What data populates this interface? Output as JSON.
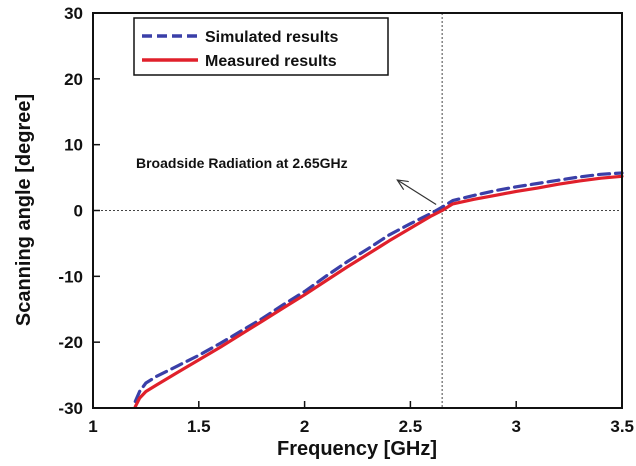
{
  "chart_data": {
    "type": "line",
    "xlabel": "Frequency [GHz]",
    "ylabel": "Scanning angle [degree]",
    "xlim": [
      1,
      3.5
    ],
    "ylim": [
      -30,
      30
    ],
    "x_ticks": [
      "1",
      "1.5",
      "2",
      "2.5",
      "3",
      "3.5"
    ],
    "y_ticks": [
      "30",
      "20",
      "10",
      "0",
      "-10",
      "-20",
      "-30"
    ],
    "grid": false,
    "legend_position": "top-left",
    "reference_lines": {
      "vertical_x": 2.65,
      "horizontal_y": 0
    },
    "annotation": {
      "text": "Broadside Radiation at 2.65GHz",
      "points_to": [
        2.65,
        0
      ]
    },
    "series": [
      {
        "name": "Simulated results",
        "style": "dashed",
        "color": "#3a3fa8",
        "x": [
          1.2,
          1.22,
          1.25,
          1.3,
          1.4,
          1.5,
          1.6,
          1.7,
          1.8,
          1.9,
          2.0,
          2.1,
          2.2,
          2.3,
          2.4,
          2.5,
          2.6,
          2.65,
          2.7,
          2.8,
          2.9,
          3.0,
          3.1,
          3.2,
          3.3,
          3.4,
          3.5
        ],
        "y": [
          -29,
          -27.5,
          -26.2,
          -25.2,
          -23.6,
          -22.0,
          -20.2,
          -18.3,
          -16.4,
          -14.3,
          -12.3,
          -10.0,
          -7.8,
          -5.8,
          -3.7,
          -2.0,
          -0.4,
          0.5,
          1.5,
          2.3,
          3.0,
          3.6,
          4.1,
          4.6,
          5.1,
          5.5,
          5.7
        ]
      },
      {
        "name": "Measured results",
        "style": "solid",
        "color": "#e0202b",
        "x": [
          1.2,
          1.22,
          1.25,
          1.3,
          1.4,
          1.5,
          1.6,
          1.7,
          1.8,
          1.9,
          2.0,
          2.1,
          2.2,
          2.3,
          2.4,
          2.5,
          2.6,
          2.65,
          2.7,
          2.8,
          2.9,
          3.0,
          3.1,
          3.2,
          3.3,
          3.4,
          3.5
        ],
        "y": [
          -29.8,
          -28.5,
          -27.5,
          -26.5,
          -24.6,
          -22.7,
          -20.8,
          -18.8,
          -16.8,
          -14.8,
          -12.8,
          -10.7,
          -8.6,
          -6.6,
          -4.6,
          -2.7,
          -0.8,
          0.0,
          1.0,
          1.7,
          2.3,
          2.9,
          3.4,
          4.0,
          4.5,
          4.9,
          5.2
        ]
      }
    ]
  }
}
